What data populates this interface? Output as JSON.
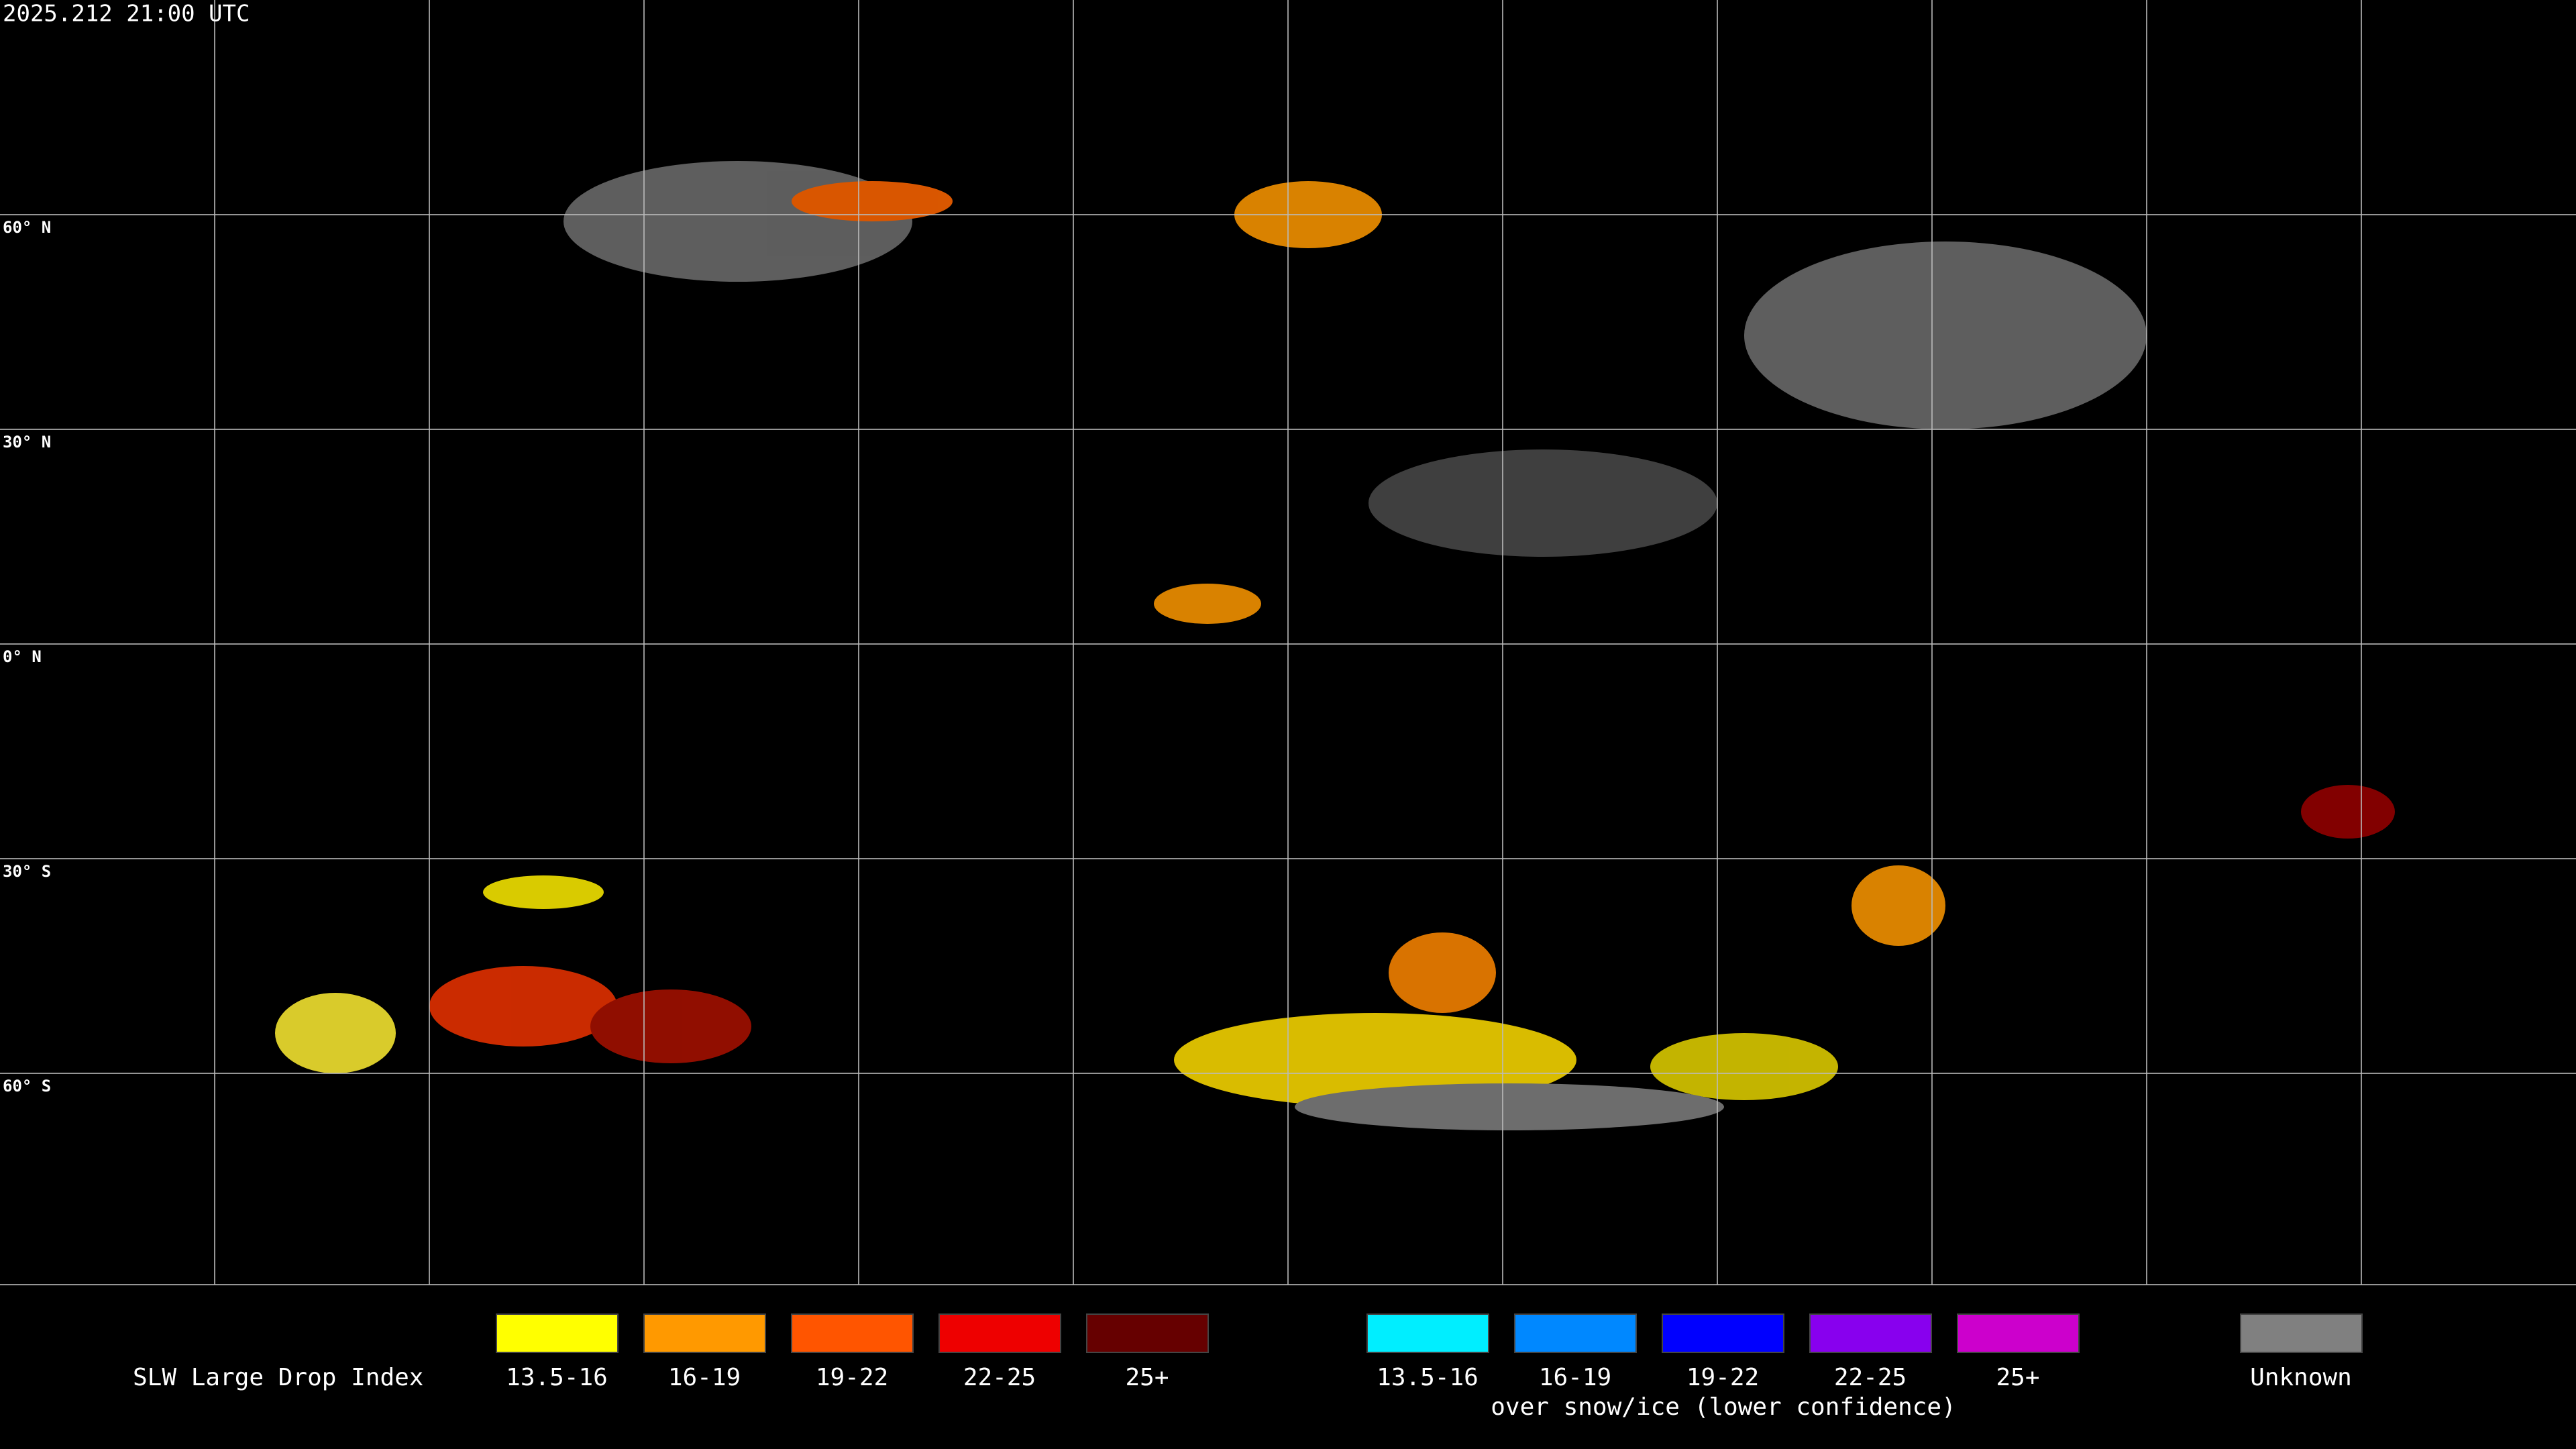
{
  "timestamp": "2025.212 21:00 UTC",
  "lat_labels": [
    "60° N",
    "30° N",
    "0° N",
    "30° S",
    "60° S"
  ],
  "legend": {
    "title": "SLW Large Drop Index",
    "items": [
      {
        "label": "13.5-16",
        "color": "#ffff00"
      },
      {
        "label": "16-19",
        "color": "#ff9900"
      },
      {
        "label": "19-22",
        "color": "#ff5500"
      },
      {
        "label": "22-25",
        "color": "#ee0000"
      },
      {
        "label": "25+",
        "color": "#660000"
      }
    ],
    "snow_items": [
      {
        "label": "13.5-16",
        "color": "#00eeff"
      },
      {
        "label": "16-19",
        "color": "#0088ff"
      },
      {
        "label": "19-22",
        "color": "#0000ff"
      },
      {
        "label": "22-25",
        "color": "#8800ee"
      },
      {
        "label": "25+",
        "color": "#cc00cc"
      }
    ],
    "snow_caption": "over snow/ice (lower confidence)",
    "unknown": {
      "label": "Unknown",
      "color": "#808080"
    }
  }
}
